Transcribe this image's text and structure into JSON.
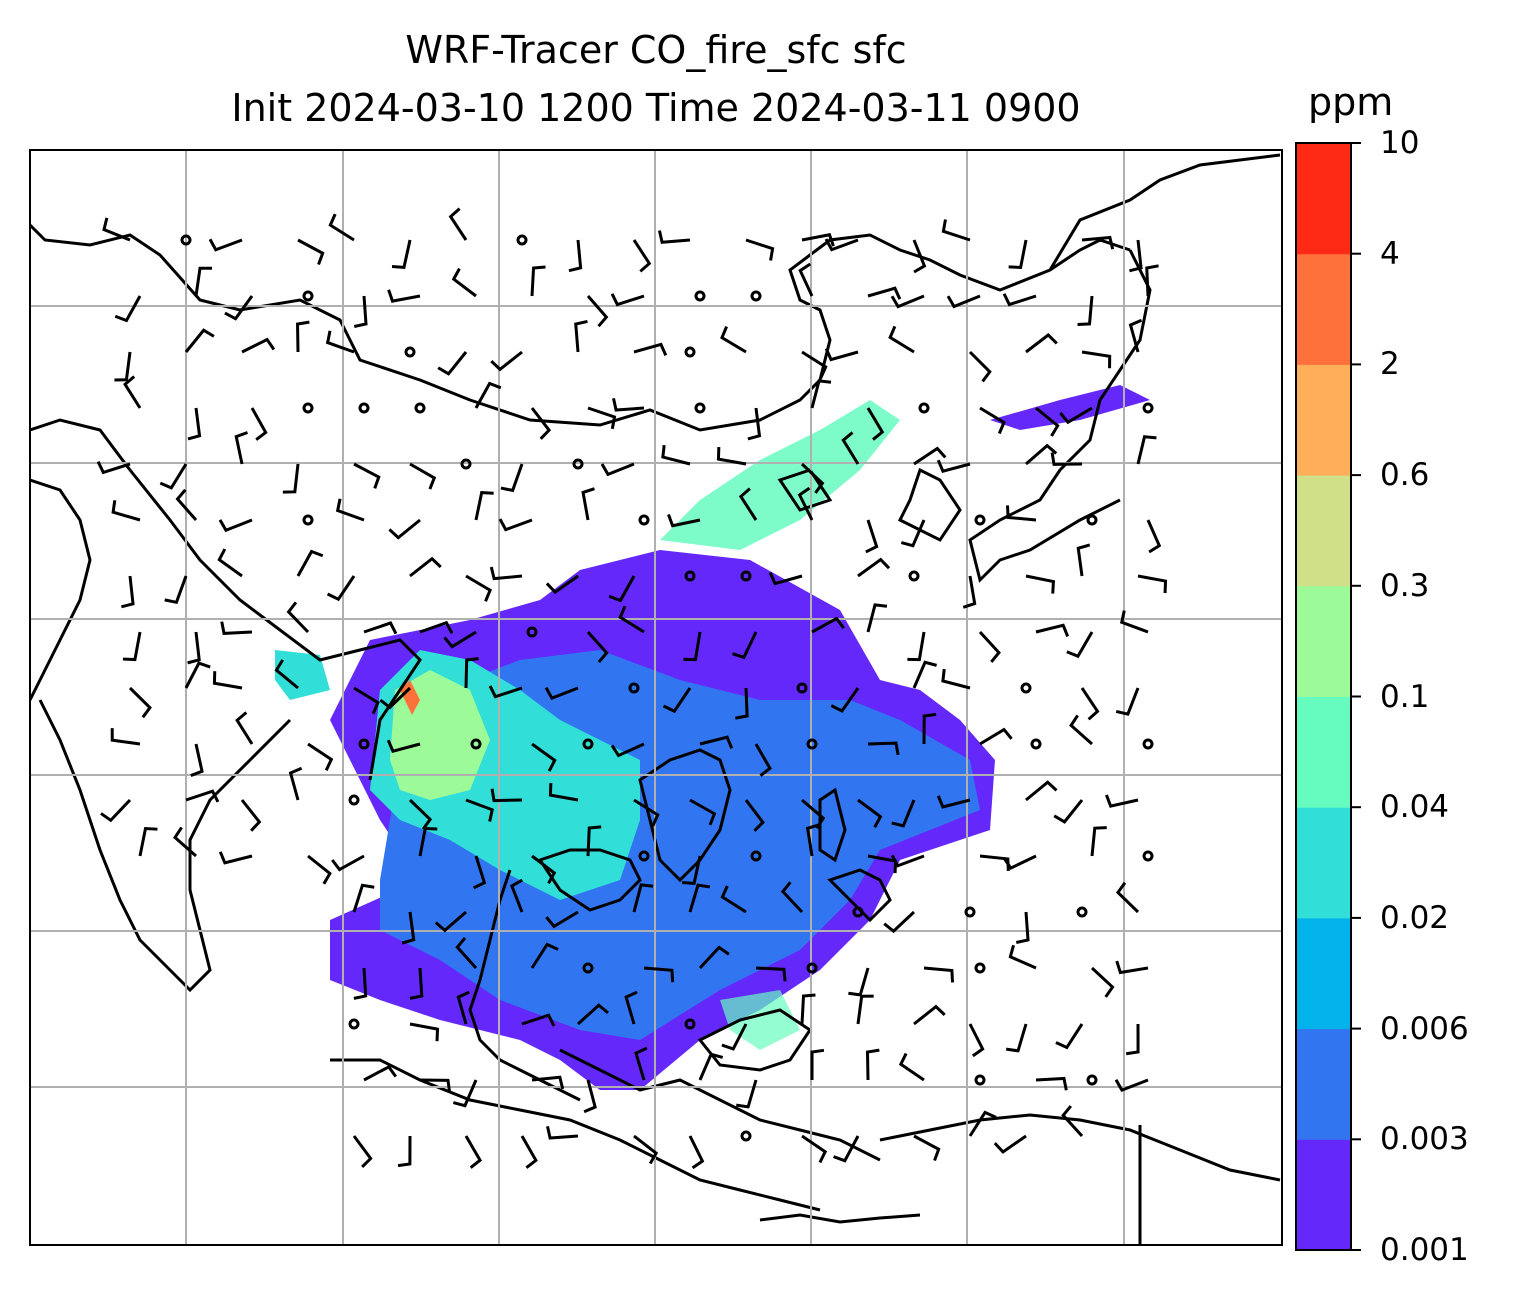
{
  "title": {
    "line1": "WRF-Tracer CO_fire_sfc sfc",
    "line2": "Init 2024-03-10 1200 Time 2024-03-11 0900"
  },
  "colorbar": {
    "unit": "ppm",
    "levels": [
      "0.001",
      "0.003",
      "0.006",
      "0.02",
      "0.04",
      "0.1",
      "0.3",
      "0.6",
      "2",
      "4",
      "10"
    ],
    "colors": [
      "#6428fa",
      "#3275f0",
      "#02b2ea",
      "#31dfd8",
      "#66fcbf",
      "#9cfb98",
      "#d0e088",
      "#ffae5a",
      "#ff713a",
      "#ff2a16"
    ]
  },
  "map": {
    "grid": "on",
    "region": "South and East Asia",
    "field_colors": {
      "low": "#6428fa",
      "lowmid": "#3275f0",
      "mid": "#31dfd8",
      "high": "#9cfb98",
      "peak": "#ff713a"
    }
  }
}
